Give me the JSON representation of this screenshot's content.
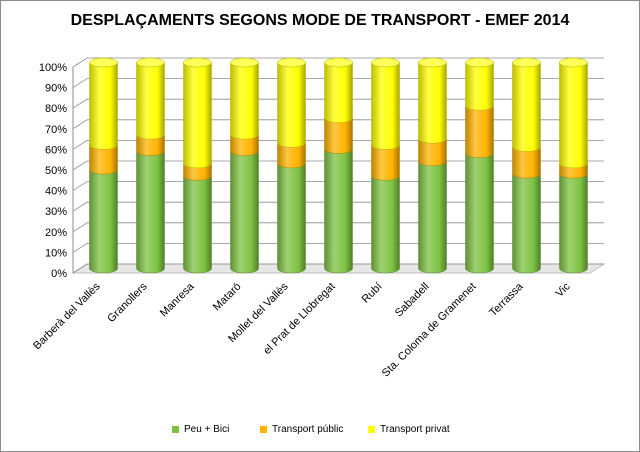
{
  "chart_data": {
    "type": "bar",
    "stacked": true,
    "style": "3d-cylinder",
    "title": "DESPLAÇAMENTS SEGONS MODE DE TRANSPORT - EMEF 2014",
    "xlabel": "",
    "ylabel": "",
    "ylim": [
      0,
      100
    ],
    "yticks": [
      "0%",
      "10%",
      "20%",
      "30%",
      "40%",
      "50%",
      "60%",
      "70%",
      "80%",
      "90%",
      "100%"
    ],
    "grid": true,
    "legend": "bottom",
    "categories": [
      "Barberà del Vallès",
      "Granollers",
      "Manresa",
      "Mataró",
      "Mollet del Vallès",
      "el Prat de Llobregat",
      "Rubí",
      "Sabadell",
      "Sta. Coloma de Gramenet",
      "Terrassa",
      "Vic"
    ],
    "series": [
      {
        "name": "Peu + Bici",
        "color": "#7dc242",
        "values": [
          48,
          57,
          45,
          57,
          51,
          58,
          45,
          52,
          56,
          46,
          46
        ]
      },
      {
        "name": "Transport públic",
        "color": "#ffb300",
        "values": [
          12,
          8,
          6,
          8,
          10,
          15,
          15,
          11,
          23,
          13,
          5
        ]
      },
      {
        "name": "Transport privat",
        "color": "#ffff00",
        "values": [
          40,
          35,
          49,
          35,
          39,
          27,
          40,
          37,
          21,
          41,
          49
        ]
      }
    ]
  }
}
